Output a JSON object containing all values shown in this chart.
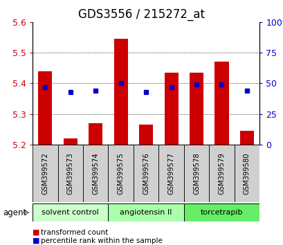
{
  "title": "GDS3556 / 215272_at",
  "samples": [
    "GSM399572",
    "GSM399573",
    "GSM399574",
    "GSM399575",
    "GSM399576",
    "GSM399577",
    "GSM399578",
    "GSM399579",
    "GSM399580"
  ],
  "bar_values": [
    5.44,
    5.22,
    5.27,
    5.545,
    5.265,
    5.435,
    5.435,
    5.47,
    5.245
  ],
  "percentile_values": [
    47,
    43,
    44,
    50,
    43,
    47,
    49,
    49,
    44
  ],
  "ylim_left": [
    5.2,
    5.6
  ],
  "ylim_right": [
    0,
    100
  ],
  "yticks_left": [
    5.2,
    5.3,
    5.4,
    5.5,
    5.6
  ],
  "yticks_right": [
    0,
    25,
    50,
    75,
    100
  ],
  "bar_color": "#cc0000",
  "dot_color": "#0000cc",
  "base_value": 5.2,
  "agent_groups": [
    {
      "label": "solvent control",
      "start": 0,
      "end": 2,
      "color": "#ccffcc"
    },
    {
      "label": "angiotensin II",
      "start": 3,
      "end": 5,
      "color": "#aaffaa"
    },
    {
      "label": "torcetrapib",
      "start": 6,
      "end": 8,
      "color": "#66ee66"
    }
  ],
  "xlabel_agent": "agent",
  "tick_label_color_left": "#cc0000",
  "tick_label_color_right": "#0000cc",
  "title_fontsize": 12,
  "tick_fontsize": 9,
  "sample_box_color": "#d0d0d0",
  "legend_items": [
    {
      "color": "#cc0000",
      "label": "transformed count"
    },
    {
      "color": "#0000cc",
      "label": "percentile rank within the sample"
    }
  ]
}
